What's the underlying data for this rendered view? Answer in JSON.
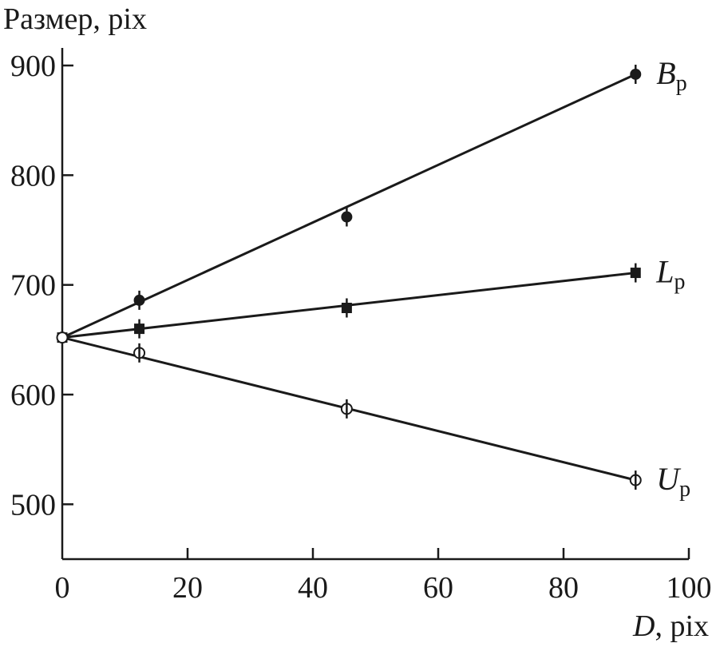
{
  "chart_data": {
    "type": "scatter",
    "ylabel": "Размер, pix",
    "xlabel_var": "D",
    "xlabel_unit": ", pix",
    "xlim": [
      0,
      100
    ],
    "ylim": [
      450,
      900
    ],
    "xticks": [
      0,
      20,
      40,
      60,
      80,
      100
    ],
    "yticks": [
      500,
      600,
      700,
      800,
      900
    ],
    "grid": false,
    "legend": "inline-right",
    "series": [
      {
        "name": "B",
        "subscript": "p",
        "marker": "filled-circle",
        "x": [
          0,
          12.3,
          45.4,
          91.5
        ],
        "y": [
          652,
          686,
          762,
          892
        ],
        "fit": [
          [
            0,
            652
          ],
          [
            91.5,
            892
          ]
        ]
      },
      {
        "name": "L",
        "subscript": "p",
        "marker": "filled-square",
        "x": [
          0,
          12.3,
          45.4,
          91.5
        ],
        "y": [
          652,
          660,
          679,
          711
        ],
        "fit": [
          [
            0,
            652
          ],
          [
            91.5,
            711
          ]
        ]
      },
      {
        "name": "U",
        "subscript": "p",
        "marker": "open-circle",
        "x": [
          0,
          12.3,
          45.4,
          91.5
        ],
        "y": [
          652,
          638,
          587,
          522
        ],
        "fit": [
          [
            0,
            652
          ],
          [
            91.5,
            522
          ]
        ]
      }
    ]
  }
}
